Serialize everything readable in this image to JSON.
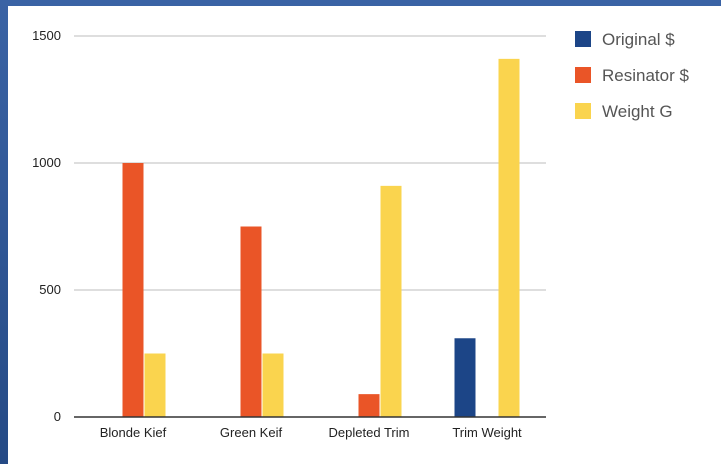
{
  "colors": {
    "frame": "#2d4f86",
    "background": "#ffffff",
    "grid": "#bdbdbd",
    "axis": "#333333"
  },
  "chart_data": {
    "type": "bar",
    "categories": [
      "Blonde Kief",
      "Green Keif",
      "Depleted Trim",
      "Trim Weight"
    ],
    "series": [
      {
        "name": "Original $",
        "color": "#1c4587",
        "values": [
          0,
          0,
          0,
          310
        ]
      },
      {
        "name": "Resinator $",
        "color": "#ea5527",
        "values": [
          1000,
          750,
          90,
          0
        ]
      },
      {
        "name": "Weight G",
        "color": "#fad44e",
        "values": [
          250,
          250,
          910,
          1410
        ]
      }
    ],
    "y_ticks": [
      "0",
      "500",
      "1000",
      "1500"
    ],
    "ylim": [
      0,
      1500
    ],
    "grid": true,
    "legend": "right",
    "title": "",
    "xlabel": "",
    "ylabel": ""
  }
}
